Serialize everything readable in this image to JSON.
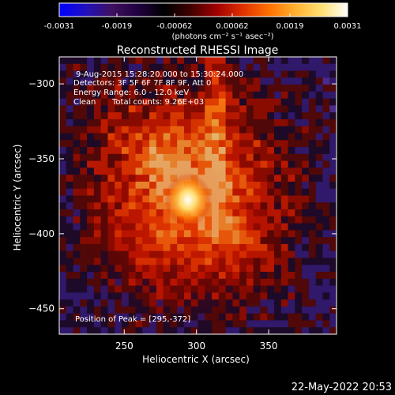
{
  "colorbar": {
    "tick_labels": [
      "-0.0031",
      "-0.0019",
      "-0.00062",
      "0.00062",
      "0.0019",
      "0.0031"
    ],
    "units_text": "(photons cm⁻² s⁻¹ asec⁻²)",
    "colors": [
      "#0000ff",
      "#2010c0",
      "#401060",
      "#200040",
      "#000000",
      "#400000",
      "#a00000",
      "#e03000",
      "#ff7000",
      "#ffb030",
      "#ffe070",
      "#ffffff"
    ]
  },
  "chart_data": {
    "type": "heatmap",
    "title": "Reconstructed RHESSI Image",
    "xlabel": "Heliocentric X (arcsec)",
    "ylabel": "Heliocentric Y (arcsec)",
    "xlim": [
      205,
      397
    ],
    "ylim": [
      -467,
      -282
    ],
    "x_ticks": [
      250,
      300,
      350
    ],
    "y_ticks": [
      -300,
      -350,
      -400,
      -450
    ],
    "value_range": [
      -0.0031,
      0.0031
    ],
    "peak": {
      "x": 295,
      "y": -372
    },
    "annotations": {
      "time_range": "9-Aug-2015 15:28:20.000 to 15:30:24.000",
      "detectors": "Detectors: 3F 5F 6F 7F 8F 9F, Att 0",
      "energy_range": "Energy Range: 6.0 - 12.0 keV",
      "method": "Clean",
      "total_counts": "Total counts: 9.26E+03",
      "peak_text": "Position of Peak = [295,-372]"
    }
  },
  "footer": {
    "date": "22-May-2022 20:53"
  }
}
